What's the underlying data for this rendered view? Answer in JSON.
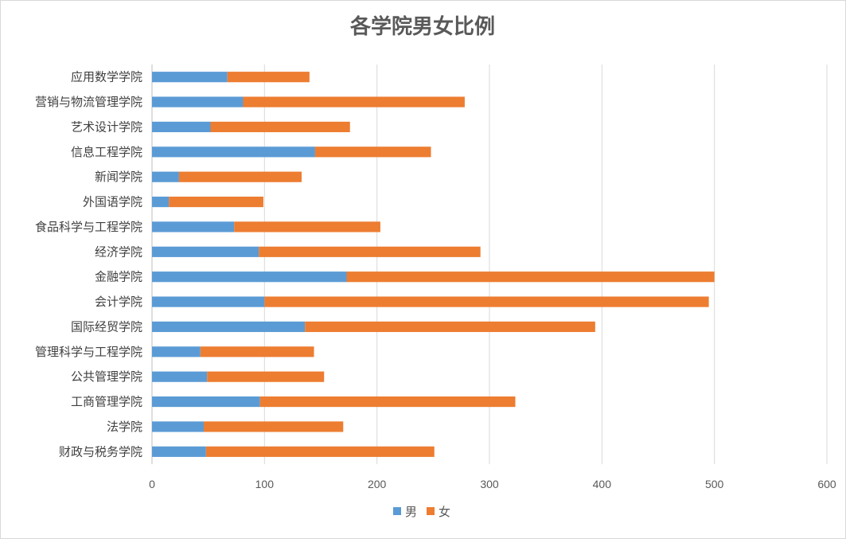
{
  "chart_data": {
    "type": "bar",
    "orientation": "horizontal",
    "stacked": true,
    "title": "各学院男女比例",
    "categories": [
      "应用数学学院",
      "营销与物流管理学院",
      "艺术设计学院",
      "信息工程学院",
      "新闻学院",
      "外国语学院",
      "食品科学与工程学院",
      "经济学院",
      "金融学院",
      "会计学院",
      "国际经贸学院",
      "管理科学与工程学院",
      "公共管理学院",
      "工商管理学院",
      "法学院",
      "财政与税务学院"
    ],
    "series": [
      {
        "name": "男",
        "color": "#5B9BD5",
        "values": [
          67,
          81,
          52,
          145,
          24,
          15,
          73,
          95,
          173,
          100,
          136,
          43,
          49,
          96,
          46,
          48
        ]
      },
      {
        "name": "女",
        "color": "#ED7D31",
        "values": [
          73,
          197,
          124,
          103,
          109,
          84,
          130,
          197,
          327,
          395,
          258,
          101,
          104,
          227,
          124,
          203
        ]
      }
    ],
    "xlim": [
      0,
      600
    ],
    "xticks": [
      0,
      100,
      200,
      300,
      400,
      500,
      600
    ],
    "grid": true,
    "legend_position": "bottom"
  }
}
